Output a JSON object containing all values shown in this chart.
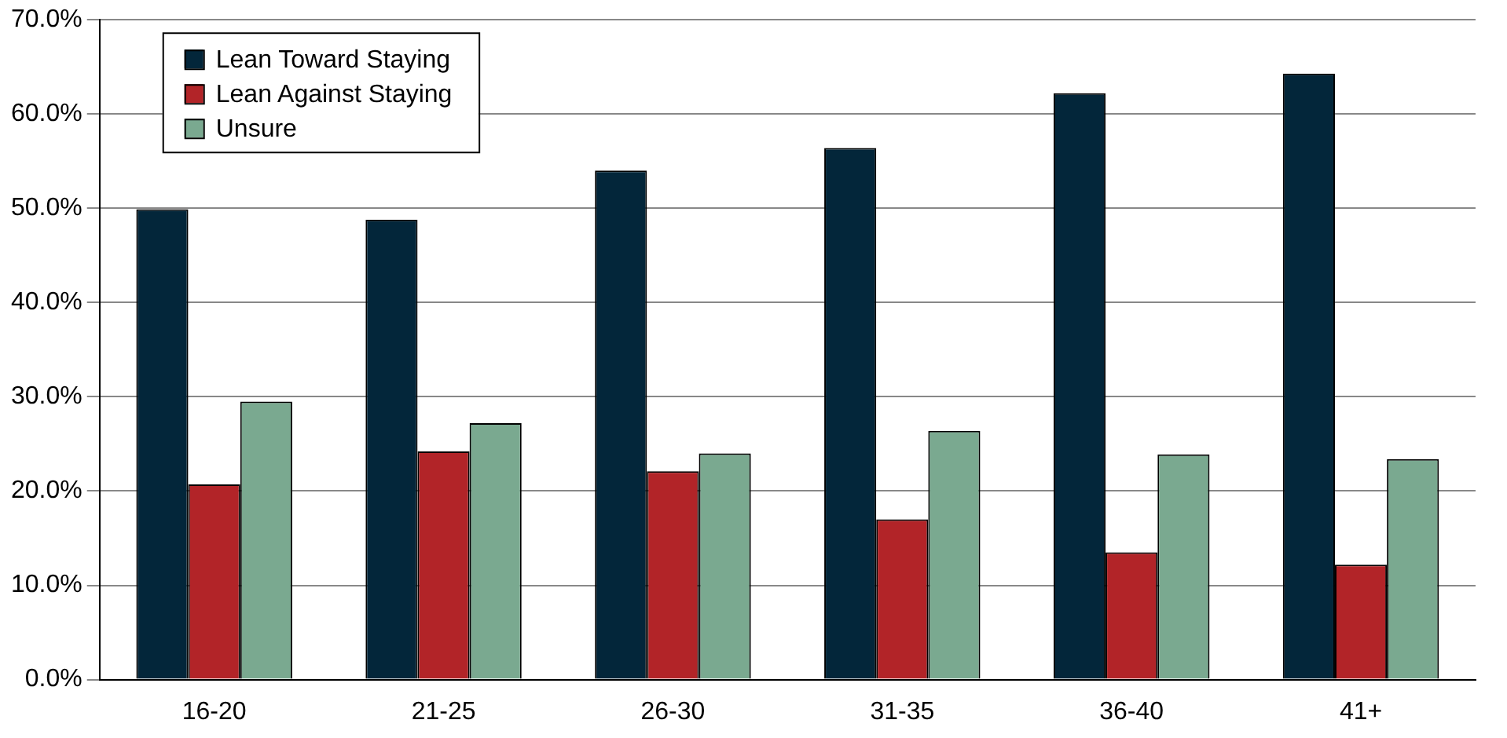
{
  "chart_data": {
    "type": "bar",
    "categories": [
      "16-20",
      "21-25",
      "26-30",
      "31-35",
      "36-40",
      "41+"
    ],
    "series": [
      {
        "name": "Lean Toward Staying",
        "color": "#03263a",
        "values": [
          49.9,
          48.8,
          54.0,
          56.4,
          62.2,
          64.3
        ]
      },
      {
        "name": "Lean Against Staying",
        "color": "#b22428",
        "values": [
          20.7,
          24.2,
          22.1,
          17.0,
          13.5,
          12.2
        ]
      },
      {
        "name": "Unsure",
        "color": "#7aa990",
        "values": [
          29.5,
          27.2,
          24.0,
          26.4,
          23.9,
          23.4
        ]
      }
    ],
    "ylim": [
      0,
      70
    ],
    "yticks": [
      {
        "value": 0,
        "label": "0.0%"
      },
      {
        "value": 10,
        "label": "10.0%"
      },
      {
        "value": 20,
        "label": "20.0%"
      },
      {
        "value": 30,
        "label": "30.0%"
      },
      {
        "value": 40,
        "label": "40.0%"
      },
      {
        "value": 50,
        "label": "50.0%"
      },
      {
        "value": 60,
        "label": "60.0%"
      },
      {
        "value": 70,
        "label": "70.0%"
      }
    ],
    "grid": "y",
    "legend": "top left"
  }
}
